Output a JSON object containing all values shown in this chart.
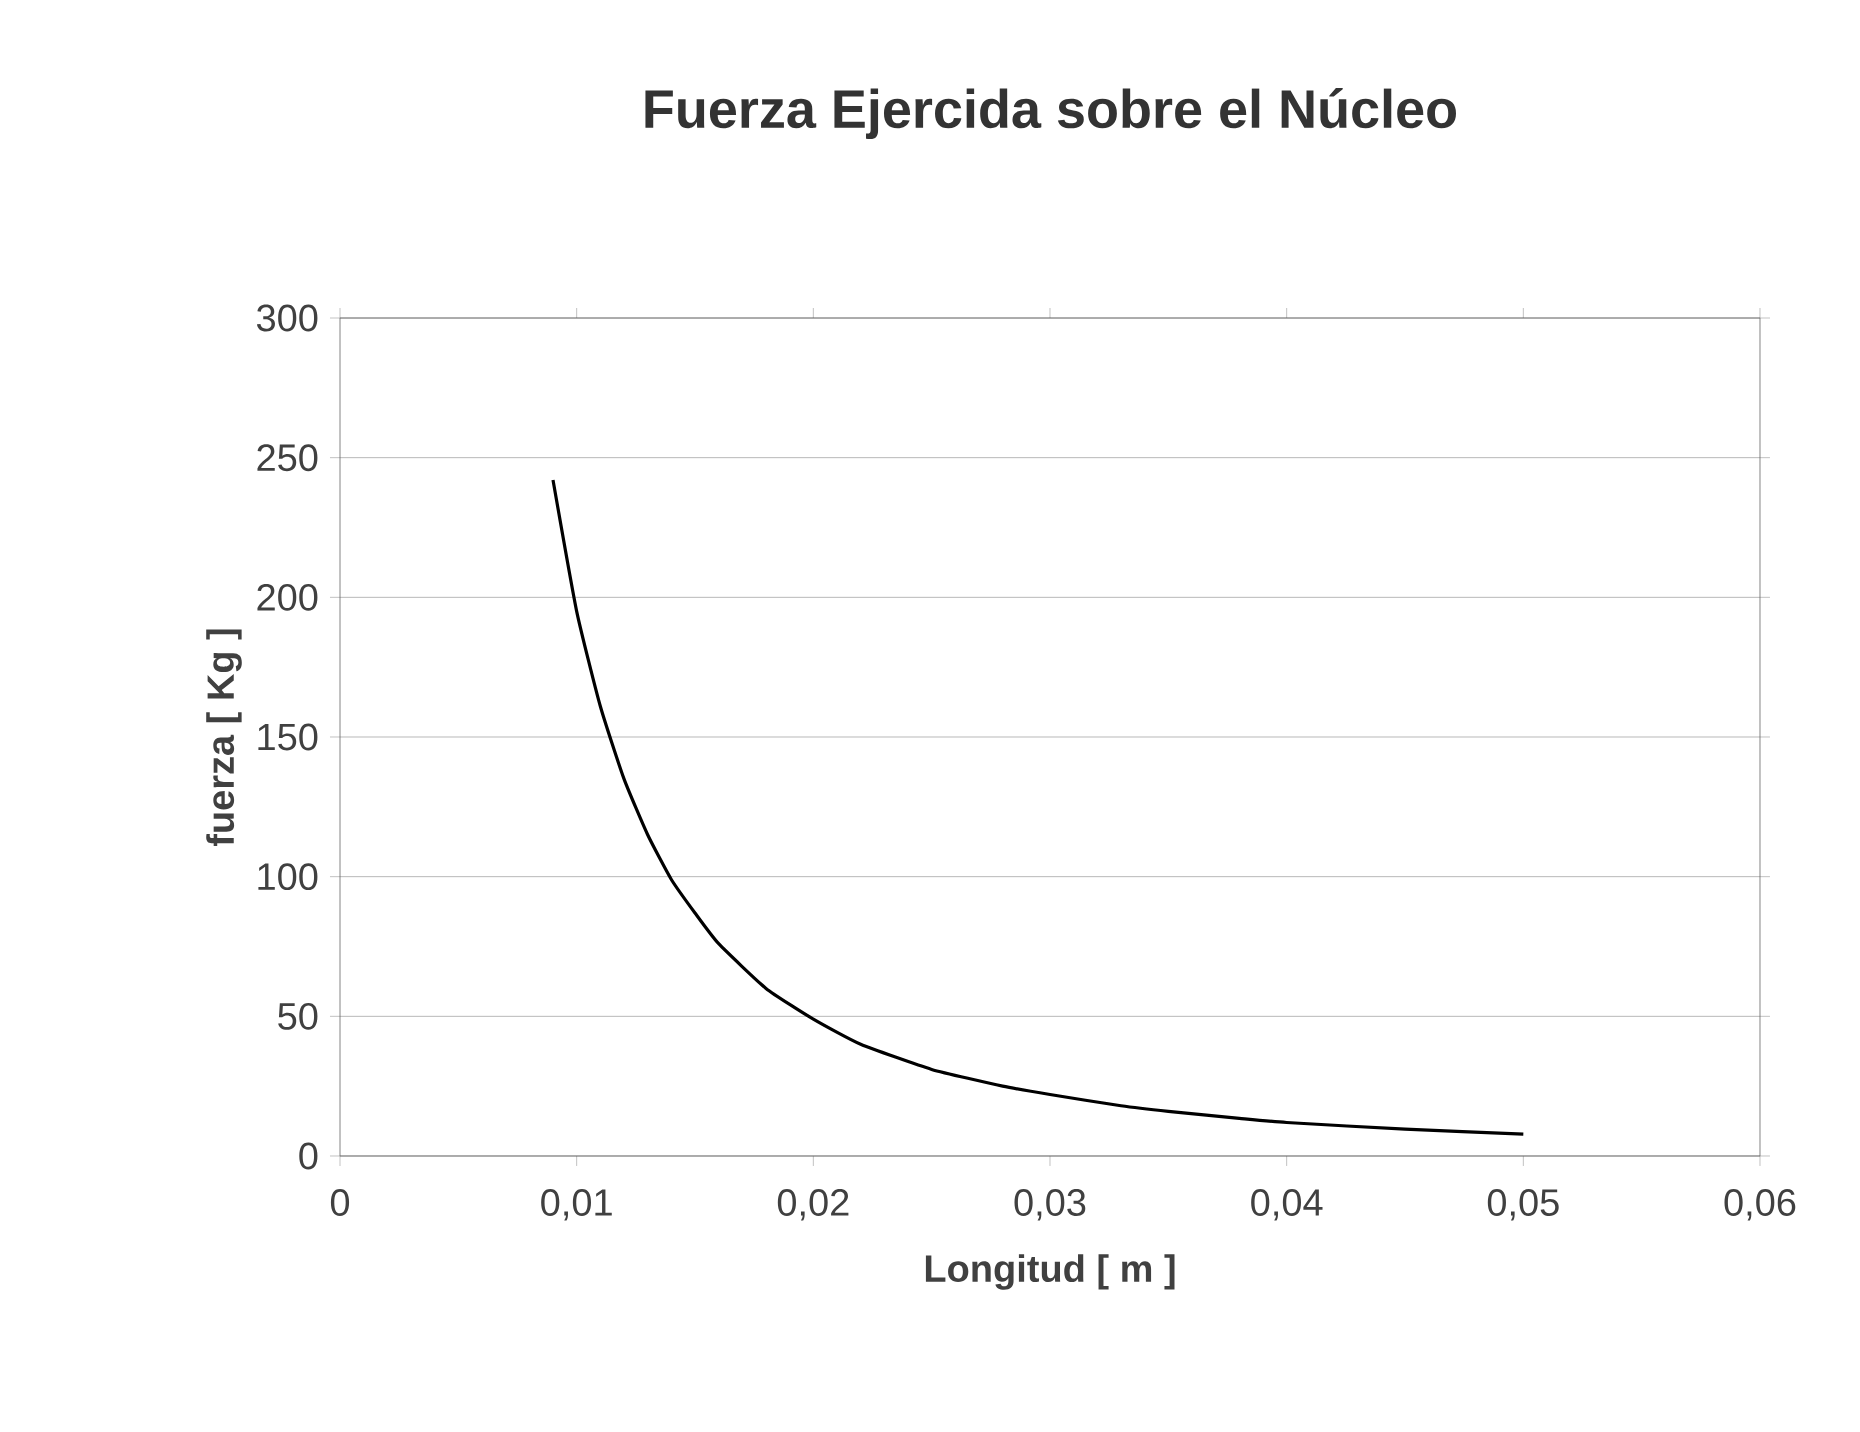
{
  "chart_data": {
    "type": "line",
    "title": "Fuerza Ejercida sobre el Núcleo",
    "xlabel": "Longitud [ m ]",
    "ylabel": "fuerza [ Kg ]",
    "x": [
      0.009,
      0.01,
      0.011,
      0.012,
      0.013,
      0.014,
      0.015,
      0.016,
      0.018,
      0.02,
      0.022,
      0.025,
      0.028,
      0.03,
      0.033,
      0.035,
      0.038,
      0.04,
      0.045,
      0.05
    ],
    "series": [
      {
        "color": "#000000",
        "values": [
          242,
          195,
          161,
          135,
          115,
          99,
          87,
          76,
          60,
          49,
          40,
          31,
          25,
          22,
          18,
          16,
          13.5,
          12,
          9.6,
          7.8
        ]
      }
    ],
    "xlim": [
      0,
      0.06
    ],
    "ylim": [
      0,
      300
    ],
    "xticks": [
      0,
      {
        "value": 0.01,
        "label": "0,01"
      },
      {
        "value": 0.02,
        "label": "0,02"
      },
      {
        "value": 0.03,
        "label": "0,03"
      },
      {
        "value": 0.04,
        "label": "0,04"
      },
      {
        "value": 0.05,
        "label": "0,05"
      },
      {
        "value": 0.06,
        "label": "0,06"
      }
    ],
    "yticks": [
      0,
      50,
      100,
      150,
      200,
      250,
      300
    ],
    "grid": "y",
    "marker": "none",
    "line_style": "solid"
  }
}
